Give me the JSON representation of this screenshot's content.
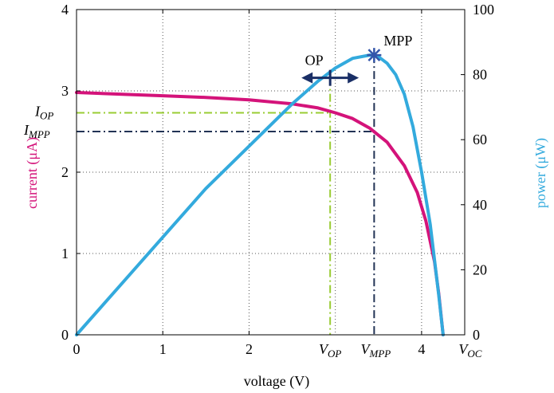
{
  "chart_data": {
    "type": "line",
    "xlabel": "voltage (V)",
    "ylabel_left": "current (μA)",
    "ylabel_right": "power (μW)",
    "xlim": [
      0,
      4.5
    ],
    "ylim_left": [
      0,
      4
    ],
    "ylim_right": [
      0,
      100
    ],
    "grid": true,
    "x_ticks": [
      "0",
      "1",
      "2",
      "4"
    ],
    "x_tick_values": [
      0,
      1,
      2,
      4
    ],
    "y_left_ticks": [
      "0",
      "1",
      "2",
      "3",
      "4"
    ],
    "y_right_ticks": [
      "0",
      "20",
      "40",
      "60",
      "80",
      "100"
    ],
    "colors": {
      "current": "#d4137a",
      "power": "#33aadd",
      "op_line": "#99cc33",
      "mpp_line": "#223355",
      "marker": "#1a2f66"
    },
    "series": [
      {
        "axis": "left",
        "x": [
          0,
          0.5,
          1,
          1.5,
          2,
          2.5,
          2.8,
          3.0,
          3.2,
          3.4,
          3.6,
          3.8,
          3.95,
          4.05,
          4.15,
          4.2,
          4.25
        ],
        "values": [
          2.98,
          2.96,
          2.94,
          2.92,
          2.89,
          2.84,
          2.79,
          2.73,
          2.66,
          2.54,
          2.37,
          2.08,
          1.75,
          1.4,
          0.9,
          0.5,
          0
        ]
      },
      {
        "axis": "right",
        "x": [
          0,
          0.5,
          1,
          1.5,
          2,
          2.5,
          2.8,
          3.0,
          3.2,
          3.4,
          3.5,
          3.6,
          3.7,
          3.8,
          3.9,
          4.0,
          4.1,
          4.2,
          4.25
        ],
        "values": [
          0,
          15,
          30,
          45,
          58,
          71,
          78,
          82,
          85,
          86,
          85.5,
          83.5,
          80,
          74,
          64,
          50,
          34,
          12,
          0
        ]
      }
    ],
    "annotations": {
      "op_label": "OP",
      "mpp_label": "MPP",
      "v_op": "V_OP",
      "v_mpp": "V_MPP",
      "v_oc": "V_OC",
      "i_op": "I_OP",
      "i_mpp": "I_MPP",
      "op_point": {
        "x": 2.94,
        "power": 79
      },
      "mpp_point": {
        "x": 3.45,
        "power": 86
      },
      "i_op_value": 2.73,
      "i_mpp_value": 2.5,
      "v_oc_value": 4.25
    }
  }
}
